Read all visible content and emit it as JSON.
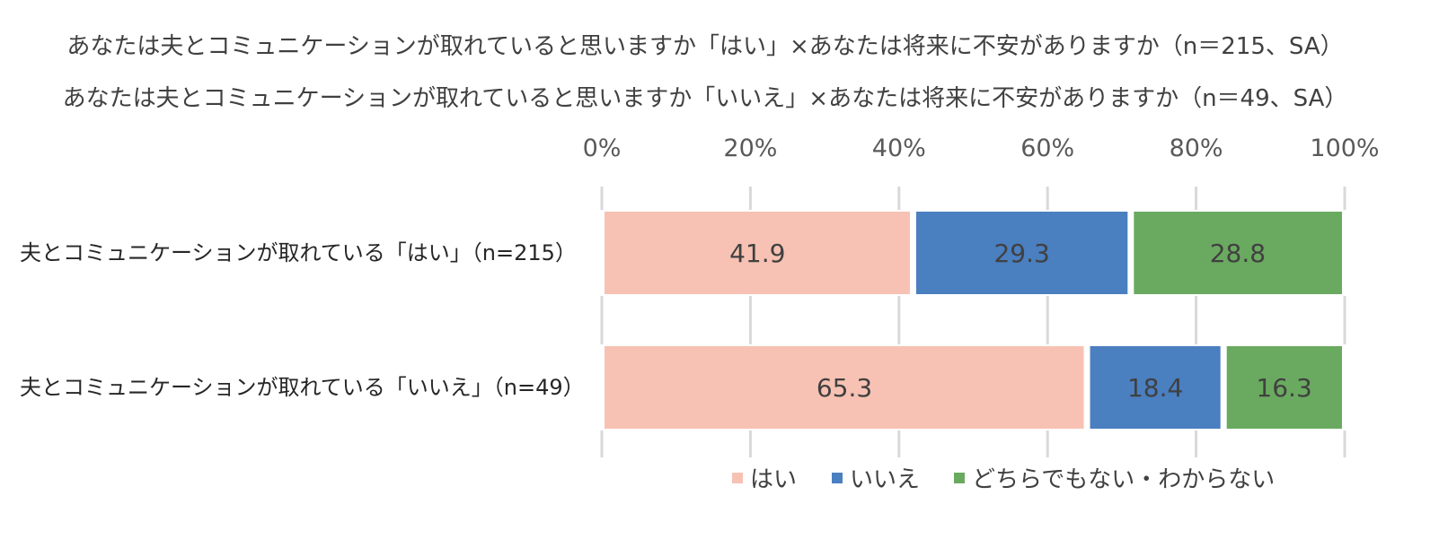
{
  "chart_data": {
    "type": "bar",
    "orientation": "horizontal",
    "stacked": true,
    "title_lines": [
      "あなたは夫とコミュニケーションが取れていると思いますか「はい」×あなたは将来に不安がありますか（n＝215、SA）",
      "あなたは夫とコミュニケーションが取れていると思いますか「いいえ」×あなたは将来に不安がありますか（n＝49、SA）"
    ],
    "categories": [
      "夫とコミュニケーションが取れている「はい」（n=215）",
      "夫とコミュニケーションが取れている「いいえ」（n=49）"
    ],
    "series": [
      {
        "name": "はい",
        "color": "#f7c2b3",
        "values": [
          41.9,
          65.3
        ],
        "labels": [
          "41.9",
          "65.3"
        ]
      },
      {
        "name": "いいえ",
        "color": "#4a7fc0",
        "values": [
          29.3,
          18.4
        ],
        "labels": [
          "29.3",
          "18.4"
        ]
      },
      {
        "name": "どちらでもない・わからない",
        "color": "#6aaa60",
        "values": [
          28.8,
          16.3
        ],
        "labels": [
          "28.8",
          "16.3"
        ]
      }
    ],
    "xlim": [
      0,
      100
    ],
    "x_ticks": [
      "0%",
      "20%",
      "40%",
      "60%",
      "80%",
      "100%"
    ],
    "x_axis_position": "top",
    "grid": true,
    "legend_position": "bottom"
  }
}
